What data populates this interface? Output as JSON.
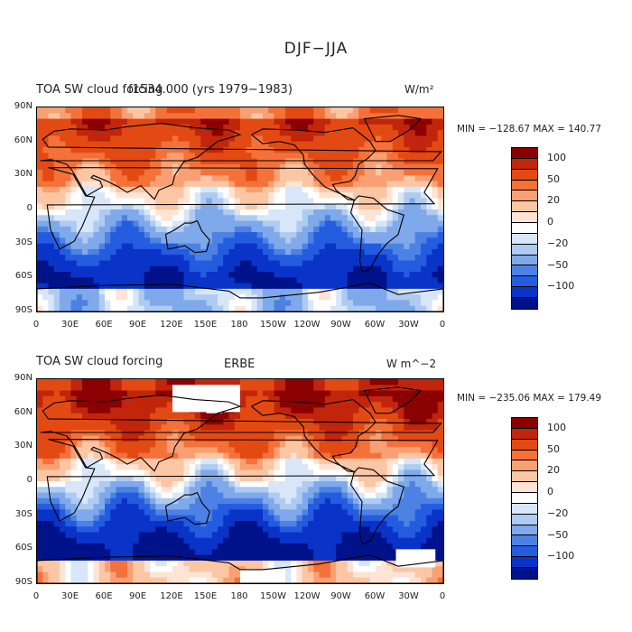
{
  "figure_title": "DJF−JJA",
  "panels": [
    {
      "id": "model",
      "title_left": "TOA SW cloud forcing",
      "title_center": "f1534.000 (yrs 1979−1983)",
      "units": "W/m²",
      "stats": "MIN = −128.67 MAX = 140.77",
      "min": -128.67,
      "max": 140.77
    },
    {
      "id": "obs",
      "title_left": "TOA SW cloud forcing",
      "title_center": "ERBE",
      "units": "W m^−2",
      "stats": "MIN = −235.06 MAX = 179.49",
      "min": -235.06,
      "max": 179.49
    }
  ],
  "lat_labels": [
    "90N",
    "60N",
    "30N",
    "0",
    "30S",
    "60S",
    "90S"
  ],
  "lon_labels": [
    "0",
    "30E",
    "60E",
    "90E",
    "120E",
    "150E",
    "180",
    "150W",
    "120W",
    "90W",
    "60W",
    "30W",
    "0"
  ],
  "colorbar": {
    "levels": [
      -120,
      -100,
      -70,
      -50,
      -40,
      -20,
      -10,
      0,
      10,
      20,
      40,
      50,
      70,
      100,
      120
    ],
    "labels": [
      "100",
      "50",
      "20",
      "0",
      "−20",
      "−50",
      "−100"
    ],
    "colors_top_to_bottom": [
      "#8b0000",
      "#c1250c",
      "#e34a13",
      "#f4713a",
      "#f8a074",
      "#fbc6a4",
      "#fde4d4",
      "#ffffff",
      "#d7e6f8",
      "#aecbf1",
      "#7fa9ea",
      "#4d82e4",
      "#245ce0",
      "#0a33c8",
      "#00128a"
    ]
  },
  "missing_color": "#ffffff",
  "coastline_color": "#000000"
}
